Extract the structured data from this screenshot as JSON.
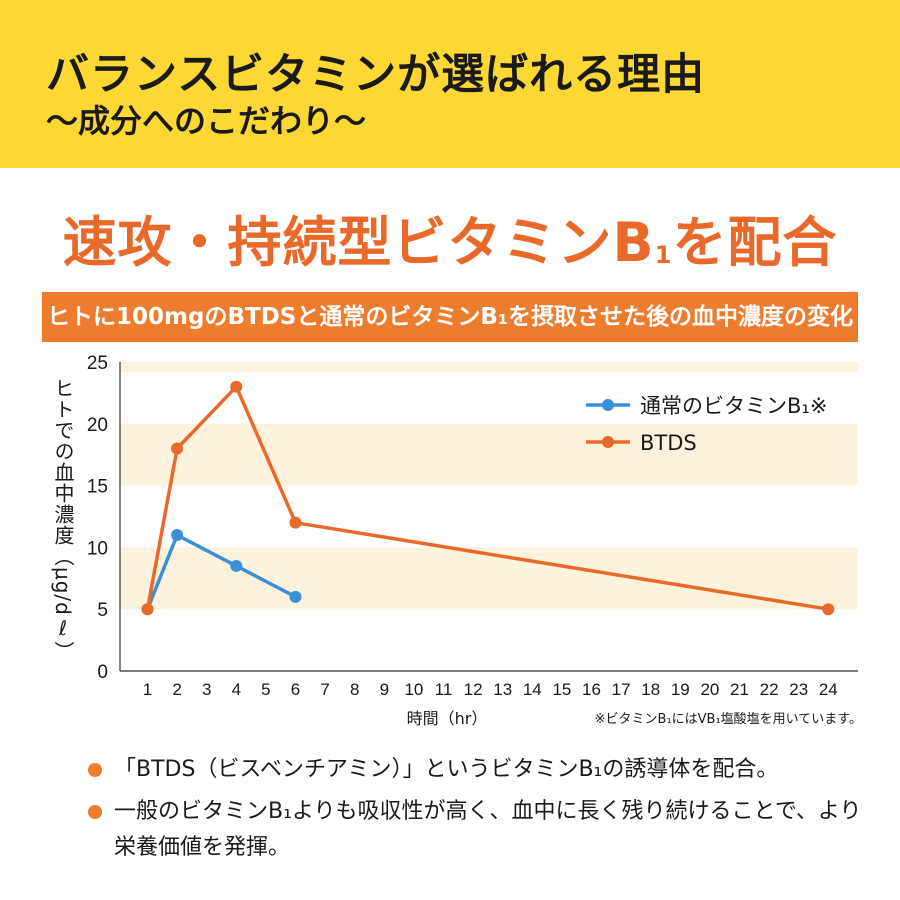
{
  "header": {
    "title": "バランスビタミンが選ばれる理由",
    "subtitle": "〜成分へのこだわり〜"
  },
  "headline": {
    "before": "速攻・持続型ビタミンB",
    "sub": "1",
    "after": "を配合"
  },
  "banner": {
    "text": "ヒトに100mgのBTDSと通常のビタミンB₁を摂取させた後の血中濃度の変化"
  },
  "chart_data": {
    "type": "line",
    "xlabel": "時間（hr）",
    "ylabel": "ヒトでの血中濃度（μg/dℓ）",
    "x_ticks": [
      1,
      2,
      3,
      4,
      5,
      6,
      7,
      8,
      9,
      10,
      11,
      12,
      13,
      14,
      15,
      16,
      17,
      18,
      19,
      20,
      21,
      22,
      23,
      24
    ],
    "y_ticks": [
      0,
      5,
      10,
      15,
      20,
      25
    ],
    "xlim": [
      0.1,
      25
    ],
    "ylim": [
      0,
      25
    ],
    "grid": "alternating horizontal bands",
    "legend_position": "top-right",
    "series": [
      {
        "name": "通常のビタミンB₁※",
        "color": "#3a8fd8",
        "x": [
          1,
          2,
          4,
          6
        ],
        "y": [
          5,
          11,
          8.5,
          6
        ]
      },
      {
        "name": "BTDS",
        "color": "#e8692a",
        "x": [
          1,
          2,
          4,
          6,
          24
        ],
        "y": [
          5,
          18,
          23,
          12,
          5
        ]
      }
    ]
  },
  "note": "※ビタミンB₁にはVB₁塩酸塩を用いています。",
  "bullets": [
    "「BTDS（ビスベンチアミン）」というビタミンB₁の誘導体を配合。",
    "一般のビタミンB₁よりも吸収性が高く、血中に長く残り続けることで、より栄養価値を発揮。"
  ],
  "colors": {
    "header_bg": "#fdd835",
    "accent": "#ee7c2f",
    "band": "#fdf3dc",
    "series_blue": "#3a8fd8",
    "series_orange": "#e8692a"
  }
}
